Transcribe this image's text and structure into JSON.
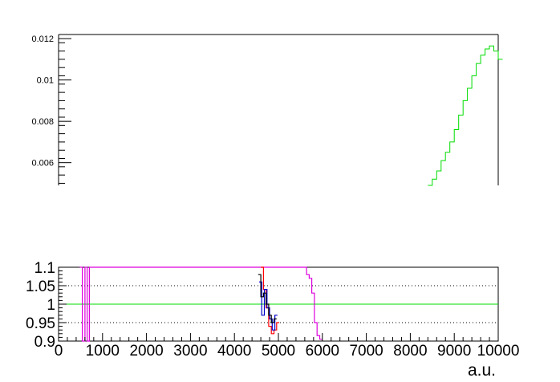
{
  "chart_data": [
    {
      "type": "line",
      "panel": "top",
      "title": "",
      "xlabel": "",
      "ylabel": "",
      "xlim": [
        0,
        10000
      ],
      "ylim": [
        0.0049,
        0.0122
      ],
      "yticks": [
        0.006,
        0.008,
        0.01,
        0.012
      ],
      "ytick_labels": [
        "0.006",
        "0.008",
        "0.01",
        "0.012"
      ],
      "grid": false,
      "series": [
        {
          "color": "#00dd00",
          "x": [
            8400,
            8500,
            8600,
            8700,
            8800,
            8900,
            9000,
            9100,
            9200,
            9300,
            9400,
            9500,
            9600,
            9700,
            9800,
            9900,
            10000
          ],
          "values": [
            0.0049,
            0.0052,
            0.0056,
            0.0061,
            0.0065,
            0.007,
            0.0076,
            0.0083,
            0.009,
            0.0096,
            0.0102,
            0.0108,
            0.0112,
            0.0115,
            0.01165,
            0.0114,
            0.011
          ]
        }
      ]
    },
    {
      "type": "line",
      "panel": "bottom",
      "title": "",
      "xlabel": "a.u.",
      "ylabel": "",
      "xlim": [
        0,
        10000
      ],
      "ylim": [
        0.9,
        1.1
      ],
      "yticks": [
        0.9,
        0.95,
        1,
        1.05,
        1.1
      ],
      "ytick_labels": [
        "0.9",
        "0.95",
        "1",
        "1.05",
        "1.1"
      ],
      "xticks": [
        0,
        1000,
        2000,
        3000,
        4000,
        5000,
        6000,
        7000,
        8000,
        9000,
        10000
      ],
      "xtick_labels": [
        "0",
        "1000",
        "2000",
        "3000",
        "4000",
        "5000",
        "6000",
        "7000",
        "8000",
        "9000",
        "10000"
      ],
      "grid": "dotted at 0.95, 1.05",
      "reference_line": {
        "y": 1.0,
        "color": "#00dd00"
      },
      "series": [
        {
          "color": "#dd00dd",
          "x": [
            480,
            540,
            600,
            650,
            700,
            5640,
            5700,
            5760,
            5820,
            5880,
            5940
          ],
          "values": [
            1.15,
            0.85,
            1.15,
            0.85,
            1.15,
            1.08,
            1.07,
            1.03,
            0.95,
            0.915,
            0.905
          ]
        },
        {
          "color": "#ff0000",
          "x": [
            4600,
            4660,
            4720,
            4780,
            4840,
            4900,
            4960
          ],
          "values": [
            1.12,
            1.04,
            0.99,
            0.94,
            0.92,
            0.93,
            0.95
          ]
        },
        {
          "color": "#0000cc",
          "x": [
            4560,
            4620,
            4680,
            4740,
            4800,
            4860,
            4920
          ],
          "values": [
            1.06,
            0.97,
            1.04,
            0.99,
            0.96,
            0.93,
            0.97
          ]
        },
        {
          "color": "#000000",
          "x": [
            4540,
            4600,
            4660,
            4720,
            4780,
            4840,
            4900
          ],
          "values": [
            1.08,
            1.02,
            1.03,
            1.0,
            0.97,
            0.95,
            0.96
          ]
        }
      ]
    }
  ]
}
